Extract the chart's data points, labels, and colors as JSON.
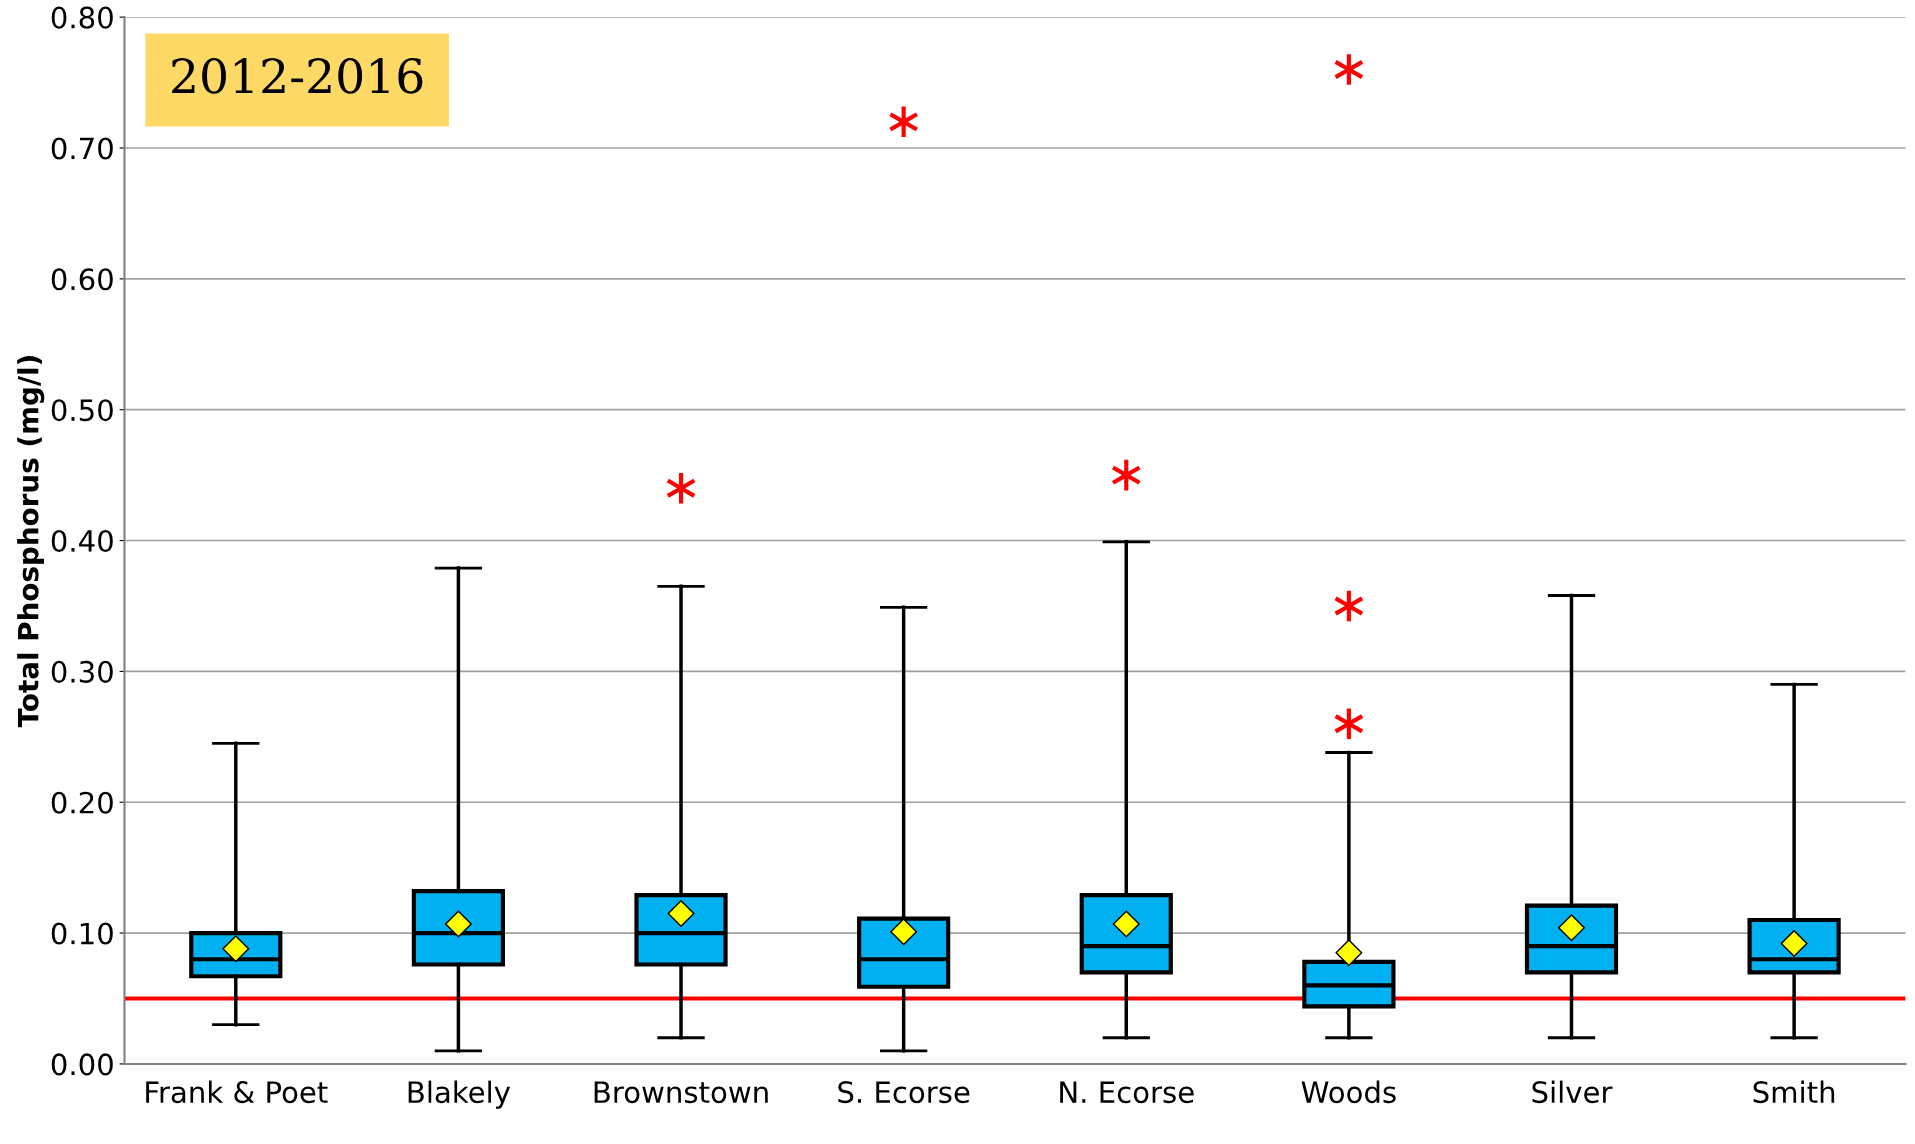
{
  "chart_data": {
    "type": "box",
    "ylabel": "Total Phosphorus (mg/l)",
    "categories": [
      "Frank & Poet",
      "Blakely",
      "Brownstown",
      "S. Ecorse",
      "N. Ecorse",
      "Woods",
      "Silver",
      "Smith"
    ],
    "color": "#00b0f0",
    "boxes": [
      {
        "low": 0.03,
        "q1": 0.067,
        "median": 0.08,
        "q3": 0.1,
        "high": 0.245,
        "mean": 0.088
      },
      {
        "low": 0.01,
        "q1": 0.076,
        "median": 0.1,
        "q3": 0.132,
        "high": 0.379,
        "mean": 0.107
      },
      {
        "low": 0.02,
        "q1": 0.076,
        "median": 0.1,
        "q3": 0.129,
        "high": 0.365,
        "mean": 0.115,
        "outliers": [
          0.44
        ]
      },
      {
        "low": 0.01,
        "q1": 0.059,
        "median": 0.08,
        "q3": 0.111,
        "high": 0.349,
        "mean": 0.101,
        "outliers": [
          0.72
        ]
      },
      {
        "low": 0.02,
        "q1": 0.07,
        "median": 0.09,
        "q3": 0.129,
        "high": 0.399,
        "mean": 0.107,
        "outliers": [
          0.45
        ]
      },
      {
        "low": 0.02,
        "q1": 0.044,
        "median": 0.06,
        "q3": 0.078,
        "high": 0.238,
        "mean": 0.085,
        "outliers": [
          0.76,
          0.35,
          0.26
        ]
      },
      {
        "low": 0.02,
        "q1": 0.07,
        "median": 0.09,
        "q3": 0.121,
        "high": 0.358,
        "mean": 0.104
      },
      {
        "low": 0.02,
        "q1": 0.07,
        "median": 0.08,
        "q3": 0.11,
        "high": 0.29,
        "mean": 0.092
      }
    ],
    "ylim": [
      0,
      0.8
    ],
    "yticks": [
      {
        "value": 0,
        "label": "0.00"
      },
      {
        "value": 0.1,
        "label": "0.10"
      },
      {
        "value": 0.2,
        "label": "0.20"
      },
      {
        "value": 0.3,
        "label": "0.30"
      },
      {
        "value": 0.4,
        "label": "0.40"
      },
      {
        "value": 0.5,
        "label": "0.50"
      },
      {
        "value": 0.6,
        "label": "0.60"
      },
      {
        "value": 0.7,
        "label": "0.70"
      },
      {
        "value": 0.8,
        "label": "0.80"
      }
    ],
    "grid": "y",
    "ref_lines": [
      {
        "axis": "y",
        "value": 0.05,
        "color": "#ff0000"
      }
    ],
    "annotations": [
      "2012-2016"
    ]
  }
}
